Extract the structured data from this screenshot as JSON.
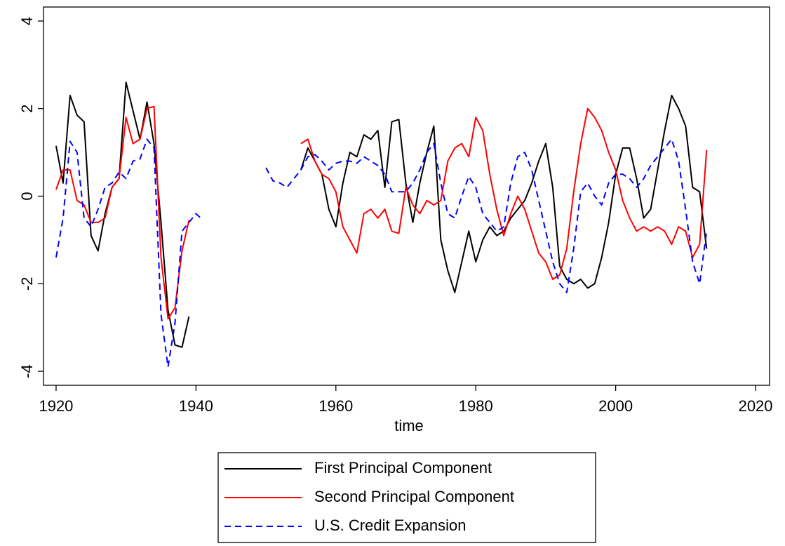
{
  "chart_data": {
    "type": "line",
    "xlabel": "time",
    "x": [
      1920,
      1921,
      1922,
      1923,
      1924,
      1925,
      1926,
      1927,
      1928,
      1929,
      1930,
      1931,
      1932,
      1933,
      1934,
      1935,
      1936,
      1937,
      1938,
      1939,
      1940,
      1941,
      1942,
      1943,
      1944,
      1945,
      1946,
      1947,
      1948,
      1949,
      1950,
      1951,
      1952,
      1953,
      1954,
      1955,
      1956,
      1957,
      1958,
      1959,
      1960,
      1961,
      1962,
      1963,
      1964,
      1965,
      1966,
      1967,
      1968,
      1969,
      1970,
      1971,
      1972,
      1973,
      1974,
      1975,
      1976,
      1977,
      1978,
      1979,
      1980,
      1981,
      1982,
      1983,
      1984,
      1985,
      1986,
      1987,
      1988,
      1989,
      1990,
      1991,
      1992,
      1993,
      1994,
      1995,
      1996,
      1997,
      1998,
      1999,
      2000,
      2001,
      2002,
      2003,
      2004,
      2005,
      2006,
      2007,
      2008,
      2009,
      2010,
      2011,
      2012,
      2013
    ],
    "series": [
      {
        "name": "First Principal Component",
        "color": "#000000",
        "linestyle": "solid",
        "values": [
          1.15,
          0.3,
          2.3,
          1.85,
          1.7,
          -0.9,
          -1.25,
          -0.4,
          0.2,
          0.4,
          2.6,
          1.95,
          1.3,
          2.15,
          1.2,
          -0.6,
          -2.6,
          -3.4,
          -3.45,
          -2.75,
          null,
          null,
          null,
          null,
          null,
          null,
          null,
          null,
          null,
          null,
          null,
          null,
          null,
          null,
          null,
          0.6,
          1.1,
          0.8,
          0.5,
          -0.3,
          -0.7,
          0.3,
          1.0,
          0.9,
          1.4,
          1.3,
          1.5,
          0.2,
          1.7,
          1.75,
          0.3,
          -0.6,
          0.3,
          1.0,
          1.6,
          -1.0,
          -1.7,
          -2.2,
          -1.5,
          -0.8,
          -1.5,
          -1.0,
          -0.7,
          -0.9,
          -0.8,
          -0.5,
          -0.3,
          -0.1,
          0.3,
          0.8,
          1.2,
          0.2,
          -1.6,
          -1.9,
          -2.0,
          -1.9,
          -2.1,
          -2.0,
          -1.4,
          -0.6,
          0.5,
          1.1,
          1.1,
          0.4,
          -0.5,
          -0.3,
          0.6,
          1.5,
          2.3,
          2.0,
          1.6,
          0.2,
          0.1,
          -1.2
        ]
      },
      {
        "name": "Second Principal Component",
        "color": "#ff0000",
        "linestyle": "solid",
        "values": [
          0.15,
          0.6,
          0.6,
          -0.1,
          -0.2,
          -0.6,
          -0.6,
          -0.5,
          0.2,
          0.4,
          1.8,
          1.2,
          1.3,
          2.0,
          2.05,
          -1.4,
          -2.8,
          -2.55,
          -1.25,
          -0.55,
          null,
          null,
          null,
          null,
          null,
          null,
          null,
          null,
          null,
          null,
          null,
          null,
          null,
          null,
          null,
          1.2,
          1.3,
          0.8,
          0.5,
          0.4,
          0.1,
          -0.7,
          -1.0,
          -1.3,
          -0.4,
          -0.3,
          -0.5,
          -0.3,
          -0.8,
          -0.85,
          0.2,
          -0.2,
          -0.4,
          -0.1,
          -0.2,
          -0.1,
          0.8,
          1.1,
          1.2,
          0.9,
          1.8,
          1.5,
          0.5,
          -0.3,
          -0.9,
          -0.4,
          0.0,
          -0.3,
          -0.8,
          -1.3,
          -1.5,
          -1.9,
          -1.8,
          -1.2,
          0.1,
          1.2,
          2.0,
          1.8,
          1.5,
          1.0,
          0.6,
          -0.1,
          -0.5,
          -0.8,
          -0.7,
          -0.8,
          -0.7,
          -0.8,
          -1.1,
          -0.7,
          -0.8,
          -1.4,
          -1.1,
          1.05
        ]
      },
      {
        "name": "U.S. Credit Expansion",
        "color": "#0000ff",
        "linestyle": "dashed",
        "values": [
          -1.4,
          -0.5,
          1.25,
          1.0,
          -0.5,
          -0.7,
          -0.3,
          0.2,
          0.3,
          0.55,
          0.4,
          0.8,
          0.85,
          1.3,
          1.1,
          -2.7,
          -3.9,
          -2.9,
          -0.8,
          -0.6,
          -0.4,
          -0.55,
          null,
          null,
          null,
          null,
          null,
          null,
          null,
          null,
          0.65,
          0.35,
          0.3,
          0.2,
          0.4,
          0.6,
          0.9,
          0.95,
          0.8,
          0.6,
          0.75,
          0.8,
          0.8,
          0.75,
          0.9,
          0.8,
          0.7,
          0.5,
          0.1,
          0.1,
          0.1,
          0.3,
          0.6,
          1.0,
          1.2,
          0.3,
          -0.4,
          -0.5,
          0.0,
          0.45,
          0.2,
          -0.4,
          -0.6,
          -0.8,
          -0.7,
          0.3,
          0.9,
          1.0,
          0.6,
          -0.1,
          -0.8,
          -1.5,
          -2.0,
          -2.2,
          -1.2,
          0.1,
          0.3,
          0.0,
          -0.2,
          0.3,
          0.5,
          0.5,
          0.4,
          0.2,
          0.4,
          0.7,
          0.9,
          1.1,
          1.3,
          0.8,
          -0.3,
          -1.5,
          -2.0,
          -0.8
        ]
      }
    ],
    "xlim": [
      1918.2,
      2022.0
    ],
    "ylim": [
      -4.32,
      4.32
    ],
    "xticks": [
      1920,
      1940,
      1960,
      1980,
      2000,
      2020
    ],
    "yticks": [
      -4,
      -2,
      0,
      2,
      4
    ],
    "legend": "bottom"
  }
}
